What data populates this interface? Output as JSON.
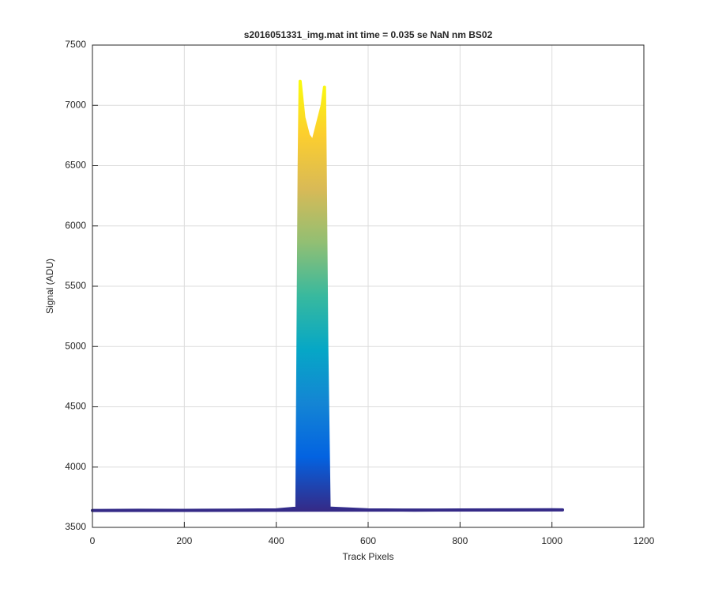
{
  "chart_data": {
    "type": "line",
    "title": "s2016051331_img.mat int time = 0.035 se  NaN nm BS02",
    "x_label": "Track Pixels",
    "y_label": "Signal (ADU)",
    "x": [
      0,
      100,
      200,
      300,
      400,
      445,
      450,
      452,
      460,
      470,
      480,
      490,
      500,
      505,
      510,
      515,
      600,
      700,
      800,
      900,
      1000,
      1023
    ],
    "series": [
      {
        "values": [
          3640,
          3642,
          3641,
          3643,
          3645,
          3660,
          6500,
          7200,
          6900,
          6750,
          6700,
          6850,
          7000,
          7150,
          5000,
          3660,
          3645,
          3643,
          3644,
          3645,
          3646,
          3645
        ],
        "colormap": [
          "#352a87",
          "#0363e1",
          "#1485d4",
          "#06a7c6",
          "#38b99e",
          "#92bf73",
          "#d9ba56",
          "#fcce2e",
          "#f9fb0e"
        ]
      }
    ],
    "xlim": [
      0,
      1200
    ],
    "xticks": [
      0,
      200,
      400,
      600,
      800,
      1000,
      1200
    ],
    "ylim": [
      3500,
      7500
    ],
    "yticks": [
      3500,
      4000,
      4500,
      5000,
      5500,
      6000,
      6500,
      7000,
      7500
    ],
    "grid": true
  }
}
